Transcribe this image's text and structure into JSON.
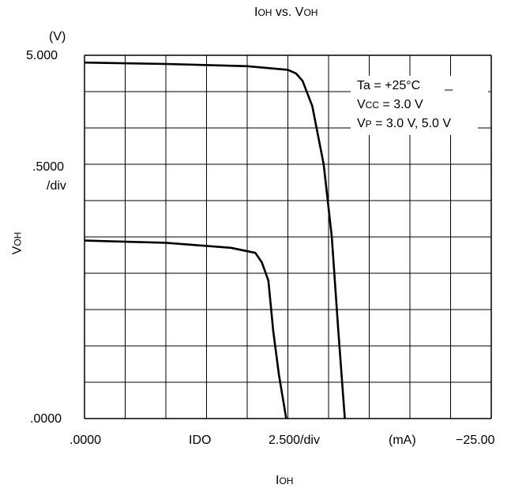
{
  "chart_data": {
    "type": "line",
    "title": {
      "main1": "I",
      "sub1": "OH",
      "mid": " vs. V",
      "sub2": "OH"
    },
    "ylabel": {
      "main": "V",
      "sub": "OH"
    },
    "xlabel": {
      "main": "I",
      "sub": "OH"
    },
    "y_unit": "(V)",
    "y_ticks": {
      "top": "5.000",
      "mid1": ".5000",
      "mid2": "/div",
      "bottom": ".0000"
    },
    "x_ticks": {
      "left": ".0000",
      "t1": "IDO",
      "t2": "2.500/div",
      "t3": "(mA)",
      "right": "−25.00"
    },
    "xlim": [
      0,
      25
    ],
    "ylim": [
      0,
      5
    ],
    "grid": true,
    "grid_divisions": {
      "x": 10,
      "y": 10
    },
    "series": [
      {
        "x": [
          0,
          5,
          10,
          12.5,
          13,
          13.4,
          14,
          14.7,
          15.2,
          15.6,
          16
        ],
        "y": [
          4.9,
          4.88,
          4.85,
          4.8,
          4.75,
          4.65,
          4.3,
          3.5,
          2.5,
          1.2,
          0
        ]
      },
      {
        "x": [
          0,
          5,
          9,
          10.5,
          10.9,
          11.3,
          11.6,
          11.95,
          12.4
        ],
        "y": [
          2.45,
          2.42,
          2.35,
          2.28,
          2.15,
          1.9,
          1.2,
          0.6,
          0
        ]
      }
    ],
    "annotations": [
      {
        "main": "Ta = +25°C"
      },
      {
        "pre": "V",
        "sub": "CC",
        "post": " = 3.0 V"
      },
      {
        "pre": "V",
        "sub": "P",
        "post": " = 3.0 V, 5.0 V"
      }
    ]
  }
}
